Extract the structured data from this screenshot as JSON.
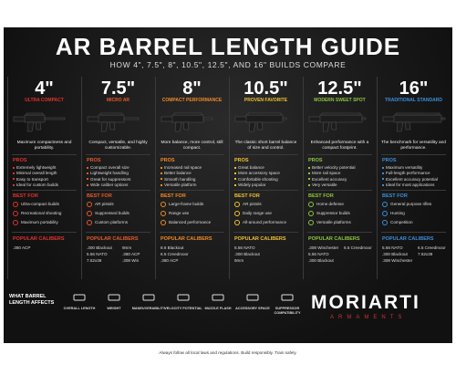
{
  "header": {
    "title": "AR BARREL LENGTH GUIDE",
    "subtitle": "HOW 4\", 7.5\", 8\", 10.5\", 12.5\", AND 16\" BUILDS COMPARE"
  },
  "columns": [
    {
      "size": "4\"",
      "label": "ULTRA COMPACT",
      "color": "#e0332b",
      "description": "Maximum compactness and portability.",
      "pros_title": "PROS",
      "pros": [
        "Extremely lightweight",
        "Minimal overall length",
        "Easy to transport",
        "Ideal for custom builds"
      ],
      "best_title": "BEST FOR",
      "best": [
        "Ultra-compact builds",
        "Recreational shooting",
        "Maximum portability"
      ],
      "calibers_title": "POPULAR CALIBERS",
      "calibers": [
        ".380 ACP"
      ]
    },
    {
      "size": "7.5\"",
      "label": "MICRO AR",
      "color": "#e85a2a",
      "description": "Compact, versatile, and highly customizable.",
      "pros_title": "PROS",
      "pros": [
        "Compact overall size",
        "Lightweight handling",
        "Great for suppressors",
        "Wide caliber options"
      ],
      "best_title": "BEST FOR",
      "best": [
        "AR pistols",
        "Suppressed builds",
        "Custom platforms"
      ],
      "calibers_title": "POPULAR CALIBERS",
      "calibers": [
        ".300 Blackout",
        "9mm",
        "5.56 NATO",
        ".380 ACP",
        "7.62x39",
        ".308 Win"
      ]
    },
    {
      "size": "8\"",
      "label": "COMPACT PERFORMANCE",
      "color": "#f08a24",
      "description": "More balance, more control, still compact.",
      "pros_title": "PROS",
      "pros": [
        "Increased rail space",
        "Better balance",
        "Smooth handling",
        "Versatile platform"
      ],
      "best_title": "BEST FOR",
      "best": [
        "Large-frame builds",
        "Range use",
        "Balanced performance"
      ],
      "calibers_title": "POPULAR CALIBERS",
      "calibers": [
        "8.6 Blackout",
        "6.5 Creedmoor",
        ".380 ACP"
      ]
    },
    {
      "size": "10.5\"",
      "label": "PROVEN FAVORITE",
      "color": "#f2c230",
      "description": "The classic short barrel balance of size and control.",
      "pros_title": "PROS",
      "pros": [
        "Great balance",
        "More accessory space",
        "Comfortable shooting",
        "Widely popular"
      ],
      "best_title": "BEST FOR",
      "best": [
        "AR pistols",
        "Daily range use",
        "All-around performance"
      ],
      "calibers_title": "POPULAR CALIBERS",
      "calibers": [
        "5.56 NATO",
        ".300 Blackout",
        "9mm"
      ]
    },
    {
      "size": "12.5\"",
      "label": "MODERN SWEET SPOT",
      "color": "#8dc63f",
      "description": "Enhanced performance with a compact footprint.",
      "pros_title": "PROS",
      "pros": [
        "Better velocity potential",
        "More rail space",
        "Excellent accuracy",
        "Very versatile"
      ],
      "best_title": "BEST FOR",
      "best": [
        "Home defense",
        "Suppressor builds",
        "Versatile platforms"
      ],
      "calibers_title": "POPULAR CALIBERS",
      "calibers": [
        ".308 Winchester",
        "5.56 NATO",
        ".300 Blackout",
        "6.5 Creedmoor"
      ]
    },
    {
      "size": "16\"",
      "label": "TRADITIONAL STANDARD",
      "color": "#3b8fd9",
      "description": "The benchmark for versatility and performance.",
      "pros_title": "PROS",
      "pros": [
        "Maximum versatility",
        "Full-length performance",
        "Excellent accuracy potential",
        "Ideal for most applications"
      ],
      "best_title": "BEST FOR",
      "best": [
        "General purpose rifles",
        "Hunting",
        "Competition"
      ],
      "calibers_title": "POPULAR CALIBERS",
      "calibers": [
        "5.56 NATO",
        "6.5 Creedmoor",
        ".300 Blackout",
        "7.62x39",
        ".308 Winchester"
      ]
    }
  ],
  "footer": {
    "affects_title": "WHAT BARREL LENGTH AFFECTS",
    "factors": [
      "OVERALL LENGTH",
      "WEIGHT",
      "MANEUVERABILITY",
      "VELOCITY POTENTIAL",
      "MUZZLE FLASH",
      "ACCESSORY SPACE",
      "SUPPRESSOR COMPATIBILITY"
    ],
    "brand": "MORIARTI",
    "brand_sub": "ARMAMENTS",
    "disclaimer": "Always follow all local laws and regulations. Build responsibly. Train safely."
  }
}
